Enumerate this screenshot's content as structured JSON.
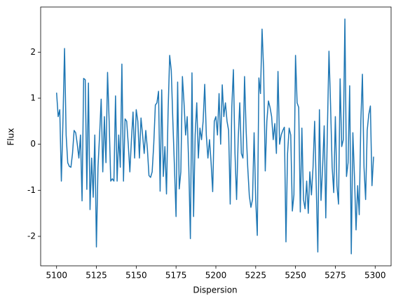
{
  "chart_data": {
    "type": "line",
    "xlabel": "Dispersion",
    "ylabel": "Flux",
    "xlim": [
      5090,
      5310
    ],
    "xticks": [
      5100,
      5125,
      5150,
      5175,
      5200,
      5225,
      5250,
      5275,
      5300
    ],
    "ylim": [
      -2.64,
      2.98
    ],
    "yticks": [
      -2,
      -1,
      0,
      1,
      2
    ],
    "x": [
      5100,
      5101,
      5102,
      5103,
      5104,
      5105,
      5106,
      5107,
      5108,
      5109,
      5110,
      5111,
      5112,
      5113,
      5114,
      5115,
      5116,
      5117,
      5118,
      5119,
      5120,
      5121,
      5122,
      5123,
      5124,
      5125,
      5126,
      5127,
      5128,
      5129,
      5130,
      5131,
      5132,
      5133,
      5134,
      5135,
      5136,
      5137,
      5138,
      5139,
      5140,
      5141,
      5142,
      5143,
      5144,
      5145,
      5146,
      5147,
      5148,
      5149,
      5150,
      5151,
      5152,
      5153,
      5154,
      5155,
      5156,
      5157,
      5158,
      5159,
      5160,
      5161,
      5162,
      5163,
      5164,
      5165,
      5166,
      5167,
      5168,
      5169,
      5170,
      5171,
      5172,
      5173,
      5174,
      5175,
      5176,
      5177,
      5178,
      5179,
      5180,
      5181,
      5182,
      5183,
      5184,
      5185,
      5186,
      5187,
      5188,
      5189,
      5190,
      5191,
      5192,
      5193,
      5194,
      5195,
      5196,
      5197,
      5198,
      5199,
      5200,
      5201,
      5202,
      5203,
      5204,
      5205,
      5206,
      5207,
      5208,
      5209,
      5210,
      5211,
      5212,
      5213,
      5214,
      5215,
      5216,
      5217,
      5218,
      5219,
      5220,
      5221,
      5222,
      5223,
      5224,
      5225,
      5226,
      5227,
      5228,
      5229,
      5230,
      5231,
      5232,
      5233,
      5234,
      5235,
      5236,
      5237,
      5238,
      5239,
      5240,
      5241,
      5242,
      5243,
      5244,
      5245,
      5246,
      5247,
      5248,
      5249,
      5250,
      5251,
      5252,
      5253,
      5254,
      5255,
      5256,
      5257,
      5258,
      5259,
      5260,
      5261,
      5262,
      5263,
      5264,
      5265,
      5266,
      5267,
      5268,
      5269,
      5270,
      5271,
      5272,
      5273,
      5274,
      5275,
      5276,
      5277,
      5278,
      5279,
      5280,
      5281,
      5282,
      5283,
      5284,
      5285,
      5286,
      5287,
      5288,
      5289,
      5290,
      5291,
      5292,
      5293,
      5294,
      5295,
      5296,
      5297,
      5298,
      5299
    ],
    "series": [
      {
        "color": "#1f77b4",
        "values": [
          1.12,
          0.6,
          0.75,
          -0.8,
          0.5,
          2.08,
          0.2,
          -0.4,
          -0.48,
          -0.5,
          -0.2,
          0.3,
          0.25,
          0.0,
          -0.3,
          0.2,
          -1.23,
          1.43,
          1.4,
          -0.98,
          1.33,
          -1.42,
          -0.3,
          -1.15,
          0.2,
          -2.23,
          -0.5,
          0.2,
          0.98,
          -0.6,
          0.6,
          -0.4,
          1.56,
          0.5,
          -0.8,
          -0.75,
          -0.8,
          1.05,
          -0.8,
          0.2,
          -0.5,
          1.74,
          -0.8,
          0.55,
          0.5,
          0.0,
          -0.6,
          0.1,
          0.7,
          -0.3,
          0.75,
          0.5,
          -0.3,
          0.57,
          0.2,
          -0.2,
          0.3,
          -0.1,
          -0.68,
          -0.72,
          -0.6,
          0.0,
          0.85,
          0.9,
          1.15,
          -1.02,
          1.18,
          -0.7,
          -0.05,
          -1.08,
          0.7,
          1.93,
          1.6,
          0.5,
          -0.5,
          -1.57,
          1.35,
          -0.97,
          -0.6,
          1.47,
          0.9,
          0.2,
          0.6,
          -0.5,
          -2.05,
          1.55,
          -1.57,
          0.2,
          0.9,
          -0.3,
          0.35,
          0.1,
          0.5,
          1.3,
          0.2,
          -0.3,
          0.1,
          -0.4,
          -1.03,
          0.5,
          0.6,
          0.2,
          1.1,
          0.0,
          1.29,
          0.6,
          0.9,
          0.5,
          0.3,
          -1.3,
          0.8,
          1.62,
          -0.2,
          -1.2,
          0.1,
          0.9,
          -0.2,
          -0.3,
          1.47,
          0.3,
          -0.5,
          -1.12,
          -1.37,
          -1.2,
          0.25,
          -1.2,
          -1.98,
          1.44,
          1.1,
          2.5,
          1.6,
          -0.58,
          0.5,
          0.94,
          0.8,
          0.6,
          0.1,
          0.45,
          -0.2,
          1.58,
          0.0,
          0.2,
          0.3,
          0.37,
          -2.12,
          -0.2,
          0.35,
          0.2,
          -1.45,
          -1.1,
          1.93,
          0.9,
          0.8,
          -1.47,
          0.35,
          -1.2,
          -1.4,
          -0.8,
          -1.5,
          -0.6,
          -1.1,
          -0.5,
          0.5,
          -0.9,
          -2.34,
          0.75,
          -1.22,
          -0.5,
          0.4,
          -1.6,
          0.3,
          2.02,
          0.85,
          -0.5,
          -1.05,
          0.6,
          -0.9,
          -1.3,
          1.42,
          -0.05,
          0.1,
          2.72,
          -0.7,
          -0.4,
          1.27,
          -2.38,
          0.25,
          -0.7,
          -1.86,
          -0.9,
          -1.53,
          0.5,
          1.52,
          -0.5,
          -1.2,
          0.3,
          0.65,
          0.83,
          -0.9,
          -0.27
        ]
      }
    ]
  }
}
